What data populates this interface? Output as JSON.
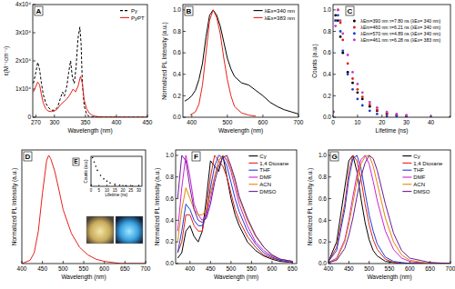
{
  "chart_data": [
    {
      "type": "line",
      "title": "A",
      "xlabel": "Wavelength (nm)",
      "ylabel": "ε(M⁻¹cm⁻¹)",
      "xlim": [
        265,
        450
      ],
      "xticks": [
        270,
        300,
        350,
        400,
        450
      ],
      "ylim": [
        0,
        40000
      ],
      "yticks": [
        0,
        {
          "value": 10000,
          "label": "1x10⁴"
        },
        {
          "value": 20000,
          "label": "2x10⁴"
        },
        {
          "value": 30000,
          "label": "3x10⁴"
        },
        {
          "value": 40000,
          "label": "4x10⁴"
        }
      ],
      "legend": "upper right",
      "series": [
        {
          "name": "Py",
          "color": "#000000",
          "line_style": "dashed",
          "x": [
            266,
            270,
            273,
            276,
            279,
            282,
            286,
            290,
            295,
            300,
            305,
            310,
            313,
            316,
            320,
            323,
            326,
            329,
            332,
            335,
            338,
            341,
            343,
            345,
            348,
            352,
            356,
            360,
            380,
            450
          ],
          "values": [
            12000,
            16000,
            19500,
            17000,
            12000,
            8000,
            5000,
            3500,
            2500,
            2500,
            3500,
            7000,
            9000,
            7500,
            11000,
            16000,
            20000,
            14000,
            12000,
            18000,
            28000,
            32000,
            26000,
            12000,
            4000,
            1000,
            300,
            100,
            0,
            0
          ]
        },
        {
          "name": "PyPT",
          "color": "#e8201a",
          "line_style": "solid",
          "x": [
            266,
            270,
            273,
            276,
            279,
            282,
            286,
            290,
            295,
            300,
            305,
            310,
            315,
            320,
            325,
            330,
            334,
            338,
            342,
            345,
            348,
            352,
            356,
            360,
            365,
            370,
            380,
            450
          ],
          "values": [
            9000,
            11000,
            12500,
            11500,
            8000,
            5000,
            3000,
            2200,
            2000,
            2200,
            3000,
            4500,
            5500,
            6500,
            8000,
            10000,
            9000,
            11000,
            14500,
            12000,
            6000,
            3000,
            1500,
            800,
            400,
            200,
            50,
            0
          ]
        }
      ]
    },
    {
      "type": "line",
      "title": "B",
      "xlabel": "Wavelength (nm)",
      "ylabel": "Normalized PL Intensity (a.u.)",
      "xlim": [
        375,
        700
      ],
      "xticks": [
        400,
        500,
        600,
        700
      ],
      "ylim": [
        0,
        1.05
      ],
      "yticks": [
        {
          "value": 0,
          "label": "0.0"
        },
        0.2,
        0.4,
        0.6,
        0.8,
        {
          "value": 1,
          "label": "1.0"
        }
      ],
      "legend": "upper right",
      "series": [
        {
          "name": "λEx=340 nm",
          "color": "#000000",
          "x": [
            380,
            390,
            400,
            410,
            420,
            430,
            440,
            450,
            460,
            470,
            480,
            490,
            500,
            510,
            520,
            540,
            560,
            580,
            600,
            620,
            640,
            660,
            680,
            700
          ],
          "values": [
            0.15,
            0.17,
            0.2,
            0.25,
            0.35,
            0.5,
            0.75,
            0.95,
            1.0,
            0.95,
            0.85,
            0.7,
            0.55,
            0.45,
            0.38,
            0.32,
            0.3,
            0.25,
            0.2,
            0.14,
            0.1,
            0.07,
            0.05,
            0.03
          ]
        },
        {
          "name": "λEx=383 nm",
          "color": "#e8201a",
          "x": [
            395,
            410,
            420,
            430,
            440,
            450,
            460,
            470,
            480,
            490,
            500,
            510,
            520,
            540,
            560,
            580
          ],
          "values": [
            0.02,
            0.05,
            0.12,
            0.3,
            0.6,
            0.9,
            1.0,
            0.93,
            0.78,
            0.55,
            0.35,
            0.2,
            0.1,
            0.04,
            0.02,
            0.01
          ]
        }
      ]
    },
    {
      "type": "scatter",
      "marker": "circle",
      "title": "C",
      "xlabel": "Lifetime (ns)",
      "ylabel": "Counts (a.u.)",
      "xlim": [
        0,
        48
      ],
      "xticks": [
        0,
        10,
        20,
        30,
        40
      ],
      "ylim": [
        0,
        1.05
      ],
      "yticks": [
        {
          "value": 0,
          "label": "0.0"
        },
        0.2,
        0.4,
        0.6,
        0.8,
        {
          "value": 1,
          "label": "1.0"
        }
      ],
      "legend": "upper right",
      "x": [
        0,
        1,
        2,
        3,
        4,
        6,
        8,
        10,
        12,
        15,
        18,
        22,
        26,
        30,
        40,
        48
      ],
      "series": [
        {
          "name": "λEm=390 nm τ=7.80 ns (λEx= 340 nm)",
          "color": "#000000",
          "values": [
            0.05,
            0.95,
            0.9,
            0.75,
            0.6,
            0.42,
            0.32,
            0.23,
            0.17,
            0.1,
            0.06,
            0.03,
            0.02,
            0.01,
            0,
            0
          ]
        },
        {
          "name": "λEm=460 nm τ=6.21 ns (λEx= 340 nm)",
          "color": "#e8201a",
          "values": [
            0.05,
            0.9,
            1.0,
            0.88,
            0.72,
            0.5,
            0.36,
            0.26,
            0.19,
            0.12,
            0.07,
            0.04,
            0.02,
            0.01,
            0,
            0
          ]
        },
        {
          "name": "λEm=570 nm τ=4.89 ns (λEx= 340 nm)",
          "color": "#1f3fd0",
          "values": [
            0.05,
            0.9,
            0.95,
            0.8,
            0.62,
            0.4,
            0.26,
            0.17,
            0.11,
            0.06,
            0.03,
            0.01,
            0.01,
            0,
            0,
            0
          ]
        },
        {
          "name": "λEm=461 nm τ=6.28 ns (λEx= 383 nm)",
          "color": "#c040c0",
          "values": [
            0.05,
            0.85,
            1.0,
            0.9,
            0.78,
            0.58,
            0.42,
            0.31,
            0.23,
            0.14,
            0.09,
            0.05,
            0.03,
            0.02,
            0,
            0
          ]
        }
      ]
    },
    {
      "type": "line",
      "title": "D",
      "xlabel": "Wavelength (nm)",
      "ylabel": "Normalized PL Intensity (a.u.)",
      "xlim": [
        400,
        700
      ],
      "xticks": [
        400,
        450,
        500,
        550,
        600,
        650,
        700
      ],
      "ylim": [
        0,
        1.05
      ],
      "tick_labels": "x",
      "x": [
        400,
        420,
        430,
        440,
        450,
        460,
        465,
        470,
        480,
        490,
        500,
        520,
        540,
        560,
        580,
        600,
        640,
        700
      ],
      "series": [
        {
          "color": "#e8201a",
          "values": [
            0,
            0.03,
            0.1,
            0.3,
            0.65,
            0.95,
            1.0,
            0.97,
            0.85,
            0.68,
            0.5,
            0.28,
            0.15,
            0.08,
            0.04,
            0.02,
            0,
            0
          ]
        }
      ]
    },
    {
      "type": "scatter",
      "marker": "circle",
      "title": "E",
      "xlabel": "Lifetime (ns)",
      "ylabel": "Counts (a.u.)",
      "xlim": [
        0,
        32
      ],
      "xticks": [
        0,
        5,
        10,
        15,
        20,
        25,
        30
      ],
      "ylim": [
        0,
        1.05
      ],
      "tick_labels": "x",
      "x": [
        0,
        1,
        2,
        3,
        4,
        6,
        8,
        10,
        12,
        15,
        18,
        22,
        26,
        30
      ],
      "series": [
        {
          "color": "#000000",
          "values": [
            0.05,
            1.0,
            0.85,
            0.7,
            0.56,
            0.38,
            0.26,
            0.18,
            0.12,
            0.07,
            0.04,
            0.02,
            0.01,
            0.01
          ]
        }
      ]
    },
    {
      "type": "line",
      "title": "F",
      "xlabel": "Wavelength (nm)",
      "ylabel": "Normalized PL Intensity (a.u.)",
      "xlim": [
        365,
        660
      ],
      "xticks": [
        400,
        450,
        500,
        550,
        600,
        650
      ],
      "ylim": [
        0,
        1.05
      ],
      "yticks": [
        {
          "value": 0,
          "label": "0.0"
        },
        0.2,
        0.4,
        0.6,
        0.8,
        {
          "value": 1,
          "label": "1.0"
        }
      ],
      "legend": "upper right",
      "x": [
        370,
        380,
        390,
        400,
        410,
        420,
        430,
        440,
        450,
        460,
        470,
        480,
        490,
        500,
        510,
        520,
        540,
        560,
        580,
        600,
        620,
        650
      ],
      "series": [
        {
          "name": "Cy",
          "color": "#000000",
          "values": [
            0.05,
            0.1,
            0.3,
            0.35,
            0.25,
            0.2,
            0.3,
            0.6,
            0.95,
            0.9,
            0.85,
            1.0,
            0.8,
            0.6,
            0.45,
            0.35,
            0.2,
            0.12,
            0.07,
            0.04,
            0.02,
            0.01
          ]
        },
        {
          "name": "1,4 Dioxane",
          "color": "#e8201a",
          "values": [
            0.1,
            0.2,
            0.45,
            0.45,
            0.35,
            0.3,
            0.3,
            0.5,
            0.8,
            1.0,
            0.95,
            0.9,
            0.8,
            0.65,
            0.5,
            0.4,
            0.25,
            0.15,
            0.08,
            0.05,
            0.03,
            0.01
          ]
        },
        {
          "name": "THF",
          "color": "#1f3fd0",
          "values": [
            0.1,
            0.3,
            0.55,
            0.5,
            0.4,
            0.35,
            0.35,
            0.45,
            0.7,
            0.9,
            1.0,
            0.98,
            0.9,
            0.75,
            0.6,
            0.48,
            0.3,
            0.18,
            0.1,
            0.06,
            0.03,
            0.01
          ]
        },
        {
          "name": "DMF",
          "color": "#d020d0",
          "values": [
            0.3,
            0.7,
            1.0,
            0.8,
            0.55,
            0.45,
            0.4,
            0.45,
            0.6,
            0.8,
            0.95,
            1.0,
            0.95,
            0.85,
            0.7,
            0.55,
            0.35,
            0.2,
            0.12,
            0.07,
            0.04,
            0.02
          ]
        },
        {
          "name": "ACN",
          "color": "#e08a00",
          "values": [
            0.2,
            0.5,
            0.7,
            0.6,
            0.5,
            0.45,
            0.45,
            0.5,
            0.65,
            0.8,
            0.95,
            1.0,
            0.97,
            0.88,
            0.75,
            0.6,
            0.4,
            0.25,
            0.15,
            0.08,
            0.04,
            0.02
          ]
        },
        {
          "name": "DMSO",
          "color": "#6a1b9a",
          "values": [
            0.6,
            1.0,
            0.95,
            0.7,
            0.5,
            0.4,
            0.38,
            0.42,
            0.55,
            0.75,
            0.9,
            0.98,
            1.0,
            0.9,
            0.78,
            0.62,
            0.42,
            0.26,
            0.15,
            0.08,
            0.04,
            0.02
          ]
        }
      ]
    },
    {
      "type": "line",
      "title": "G",
      "xlabel": "Wavelength (nm)",
      "ylabel": "Normalized PL Intensity (a.u.)",
      "xlim": [
        400,
        700
      ],
      "xticks": [
        400,
        450,
        500,
        550,
        600,
        650,
        700
      ],
      "ylim": [
        0,
        1.05
      ],
      "yticks": [
        {
          "value": 0,
          "label": "0.0"
        },
        0.2,
        0.4,
        0.6,
        0.8,
        {
          "value": 1,
          "label": "1.0"
        }
      ],
      "legend": "upper right",
      "x": [
        400,
        420,
        440,
        450,
        460,
        470,
        480,
        490,
        500,
        510,
        520,
        540,
        560,
        580,
        600,
        650,
        700
      ],
      "series": [
        {
          "name": "Cy",
          "color": "#000000",
          "values": [
            0.02,
            0.2,
            0.7,
            0.95,
            1.0,
            0.85,
            0.6,
            0.38,
            0.22,
            0.12,
            0.07,
            0.02,
            0.01,
            0,
            0,
            0,
            0
          ]
        },
        {
          "name": "1,4 Dioxane",
          "color": "#e8201a",
          "values": [
            0.02,
            0.15,
            0.55,
            0.85,
            1.0,
            0.95,
            0.78,
            0.55,
            0.36,
            0.22,
            0.13,
            0.04,
            0.01,
            0,
            0,
            0,
            0
          ]
        },
        {
          "name": "THF",
          "color": "#1f3fd0",
          "values": [
            0.02,
            0.12,
            0.5,
            0.78,
            0.97,
            1.0,
            0.88,
            0.66,
            0.45,
            0.3,
            0.18,
            0.06,
            0.02,
            0.01,
            0,
            0,
            0
          ]
        },
        {
          "name": "DMF",
          "color": "#d020d0",
          "values": [
            0.01,
            0.05,
            0.22,
            0.4,
            0.62,
            0.82,
            0.96,
            1.0,
            0.92,
            0.76,
            0.58,
            0.3,
            0.13,
            0.05,
            0.02,
            0,
            0
          ]
        },
        {
          "name": "ACN",
          "color": "#e08a00",
          "values": [
            0.01,
            0.04,
            0.2,
            0.36,
            0.56,
            0.76,
            0.92,
            0.99,
            1.0,
            0.9,
            0.74,
            0.42,
            0.2,
            0.08,
            0.03,
            0,
            0
          ]
        },
        {
          "name": "DMSO",
          "color": "#6a1b9a",
          "values": [
            0.01,
            0.03,
            0.14,
            0.26,
            0.42,
            0.62,
            0.8,
            0.93,
            1.0,
            0.97,
            0.86,
            0.55,
            0.28,
            0.12,
            0.05,
            0.01,
            0
          ]
        }
      ]
    }
  ]
}
